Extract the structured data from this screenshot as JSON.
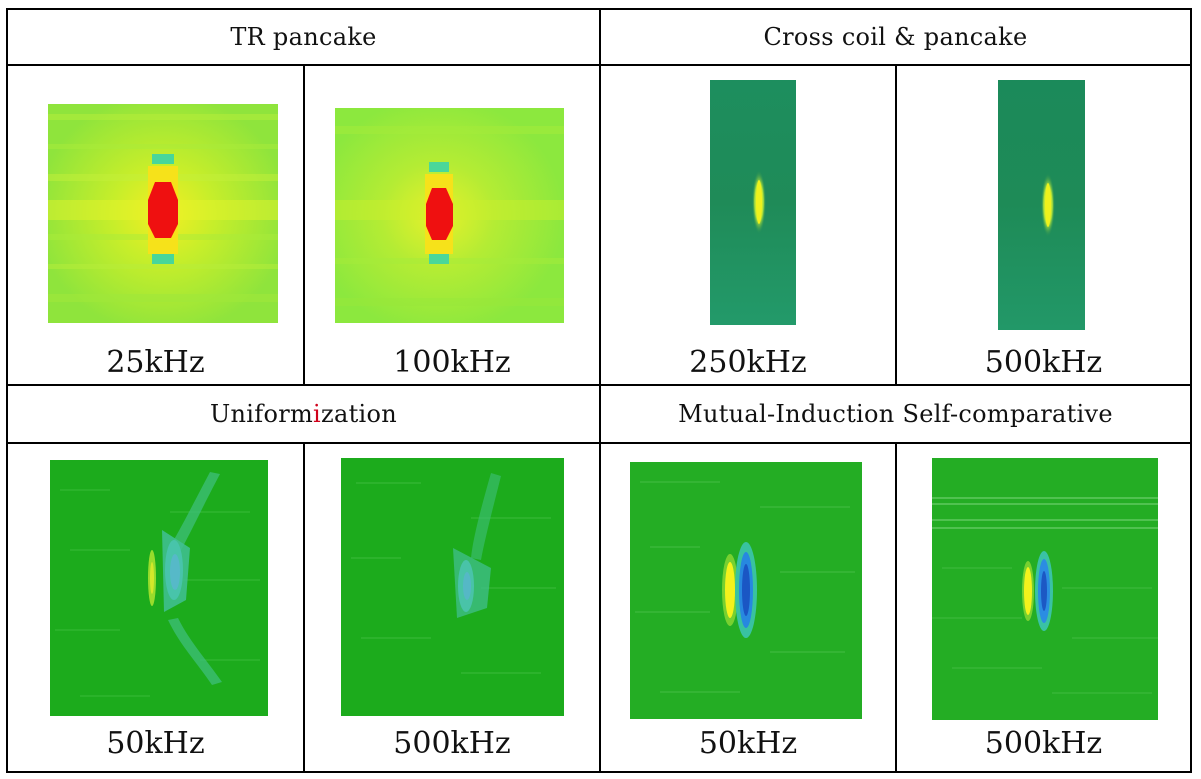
{
  "table": {
    "headers": {
      "tr_pancake": "TR pancake",
      "cross_coil": "Cross coil & pancake",
      "uniformization_parts": [
        "Uniform",
        "i",
        "zation"
      ],
      "mutual_induction": "Mutual-Induction Self-comparative"
    },
    "captions": {
      "tr_25": "25kHz",
      "tr_100": "100kHz",
      "cc_250": "250kHz",
      "cc_500": "500kHz",
      "un_50": "50kHz",
      "un_500": "500kHz",
      "mi_50": "50kHz",
      "mi_500": "500kHz"
    }
  },
  "images": [
    {
      "name": "tr-pancake-25khz-image",
      "icon": "eddy-current-c-scan",
      "colors": [
        "#9dea3a",
        "#fbf41c",
        "#ef1010"
      ]
    },
    {
      "name": "tr-pancake-100khz-image",
      "icon": "eddy-current-c-scan",
      "colors": [
        "#92e83c",
        "#fbf41c",
        "#ef1010"
      ]
    },
    {
      "name": "cross-coil-250khz-image",
      "icon": "eddy-current-c-scan",
      "colors": [
        "#1b8f5c",
        "#e8f21c"
      ]
    },
    {
      "name": "cross-coil-500khz-image",
      "icon": "eddy-current-c-scan",
      "colors": [
        "#1a8f5b",
        "#e8f21c"
      ]
    },
    {
      "name": "uniformization-50khz-image",
      "icon": "eddy-current-c-scan",
      "colors": [
        "#1cab1c",
        "#46c4a6"
      ]
    },
    {
      "name": "uniformization-500khz-image",
      "icon": "eddy-current-c-scan",
      "colors": [
        "#1cab1c",
        "#46c4a6"
      ]
    },
    {
      "name": "mutual-induction-50khz-image",
      "icon": "eddy-current-c-scan",
      "colors": [
        "#24ad24",
        "#f4f21c",
        "#1e6fd8"
      ]
    },
    {
      "name": "mutual-induction-500khz-image",
      "icon": "eddy-current-c-scan",
      "colors": [
        "#24ad24",
        "#f4f21c",
        "#1e6fd8"
      ]
    }
  ]
}
